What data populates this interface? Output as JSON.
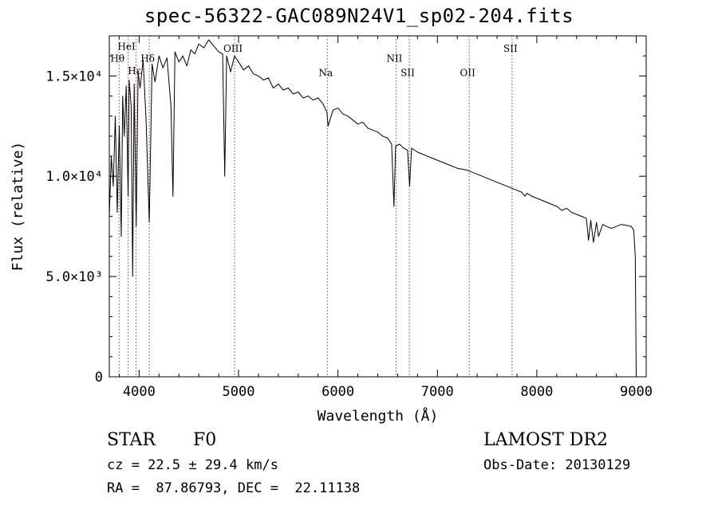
{
  "title": "spec-56322-GAC089N24V1_sp02-204.fits",
  "info": {
    "object_class": "STAR",
    "subclass": "F0",
    "survey": "LAMOST DR2",
    "redshift": "cz = 22.5 ± 29.4 km/s",
    "obs_date": "Obs-Date: 20130129",
    "coords": "RA =  87.86793, DEC =  22.11138"
  },
  "chart_data": {
    "type": "line",
    "title": "spec-56322-GAC089N24V1_sp02-204.fits",
    "xlabel": "Wavelength (Å)",
    "ylabel": "Flux (relative)",
    "xlim": [
      3700,
      9100
    ],
    "ylim": [
      0,
      17000
    ],
    "x_ticks": [
      4000,
      5000,
      6000,
      7000,
      8000,
      9000
    ],
    "x_tick_labels": [
      "4000",
      "5000",
      "6000",
      "7000",
      "8000",
      "9000"
    ],
    "y_ticks": [
      0,
      5000,
      10000,
      15000
    ],
    "y_tick_labels": [
      "0",
      "5.0×10³",
      "1.0×10⁴",
      "1.5×10⁴"
    ],
    "grid": false,
    "line_color": "#000000",
    "marker_line_color": "#b03030",
    "spectral_lines": [
      {
        "label": "Hθ",
        "wavelength": 3798,
        "label_flux": 15700
      },
      {
        "label": "HeI",
        "wavelength": 3889,
        "label_flux": 16300
      },
      {
        "label": "Hε",
        "wavelength": 3970,
        "label_flux": 15100
      },
      {
        "label": "Hδ",
        "wavelength": 4102,
        "label_flux": 15700
      },
      {
        "label": "OIII",
        "wavelength": 4960,
        "label_flux": 16200
      },
      {
        "label": "Na",
        "wavelength": 5893,
        "label_flux": 15000
      },
      {
        "label": "NII",
        "wavelength": 6584,
        "label_flux": 15700
      },
      {
        "label": "SII",
        "wavelength": 6717,
        "label_flux": 15000
      },
      {
        "label": "OII",
        "wavelength": 7320,
        "label_flux": 15000
      },
      {
        "label": "SII",
        "wavelength": 7751,
        "label_flux": 16200
      }
    ],
    "series": [
      {
        "x": [
          3700,
          3720,
          3740,
          3760,
          3780,
          3800,
          3820,
          3835,
          3850,
          3870,
          3889,
          3900,
          3920,
          3935,
          3950,
          3970,
          3990,
          4010,
          4040,
          4070,
          4102,
          4130,
          4160,
          4200,
          4240,
          4280,
          4320,
          4340,
          4360,
          4400,
          4440,
          4480,
          4520,
          4560,
          4600,
          4650,
          4700,
          4750,
          4800,
          4840,
          4861,
          4880,
          4920,
          4960,
          5000,
          5050,
          5100,
          5150,
          5200,
          5250,
          5300,
          5350,
          5400,
          5450,
          5500,
          5550,
          5600,
          5650,
          5700,
          5750,
          5800,
          5850,
          5889,
          5900,
          5950,
          6000,
          6050,
          6100,
          6150,
          6200,
          6250,
          6300,
          6350,
          6400,
          6450,
          6500,
          6540,
          6563,
          6580,
          6620,
          6660,
          6700,
          6720,
          6740,
          6800,
          6850,
          6900,
          6950,
          7000,
          7050,
          7100,
          7150,
          7200,
          7250,
          7300,
          7350,
          7400,
          7450,
          7500,
          7550,
          7600,
          7650,
          7700,
          7750,
          7800,
          7850,
          7880,
          7900,
          7950,
          8000,
          8050,
          8100,
          8150,
          8200,
          8250,
          8300,
          8350,
          8400,
          8450,
          8498,
          8520,
          8542,
          8570,
          8600,
          8620,
          8662,
          8700,
          8750,
          8800,
          8850,
          8900,
          8950,
          8975,
          8990,
          9000
        ],
        "y": [
          8000,
          11000,
          9500,
          13000,
          8200,
          12500,
          7000,
          14000,
          12000,
          14500,
          9000,
          14800,
          13500,
          5000,
          14600,
          7500,
          15200,
          14400,
          15800,
          12800,
          7700,
          15600,
          14700,
          16000,
          15400,
          15900,
          13500,
          9000,
          16200,
          15700,
          16000,
          15500,
          16300,
          16100,
          16600,
          16400,
          16800,
          16500,
          16200,
          16100,
          10000,
          16000,
          15200,
          16000,
          15700,
          15300,
          15500,
          15100,
          15000,
          14800,
          14900,
          14400,
          14600,
          14300,
          14400,
          14100,
          14200,
          13900,
          14000,
          13800,
          13900,
          13600,
          13200,
          12500,
          13300,
          13400,
          13100,
          13000,
          12800,
          12600,
          12700,
          12400,
          12300,
          12200,
          12000,
          11900,
          11600,
          8500,
          11500,
          11600,
          11400,
          11300,
          9500,
          11400,
          11200,
          11100,
          11000,
          10900,
          10800,
          10700,
          10600,
          10500,
          10400,
          10350,
          10300,
          10200,
          10100,
          10000,
          9900,
          9800,
          9700,
          9600,
          9500,
          9400,
          9300,
          9200,
          9000,
          9150,
          9000,
          8900,
          8800,
          8700,
          8600,
          8500,
          8300,
          8400,
          8200,
          8100,
          8000,
          7900,
          6800,
          7800,
          6700,
          7700,
          7000,
          7600,
          7500,
          7400,
          7500,
          7600,
          7550,
          7500,
          7300,
          6000,
          0
        ]
      }
    ]
  }
}
